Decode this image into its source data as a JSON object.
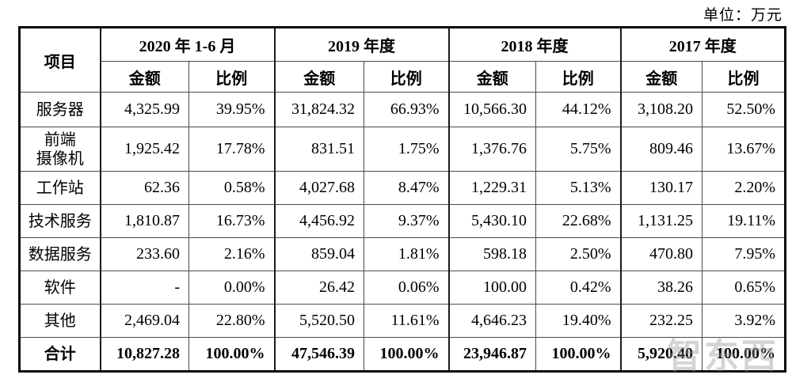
{
  "unit_label": "单位：万元",
  "watermark": "智东西",
  "table": {
    "item_header": "项目",
    "periods": [
      "2020 年 1-6 月",
      "2019 年度",
      "2018 年度",
      "2017 年度"
    ],
    "amount_header": "金额",
    "ratio_header": "比例",
    "rows": [
      {
        "label": "服务器",
        "values": [
          "4,325.99",
          "39.95%",
          "31,824.32",
          "66.93%",
          "10,566.30",
          "44.12%",
          "3,108.20",
          "52.50%"
        ]
      },
      {
        "label": "前端\n摄像机",
        "values": [
          "1,925.42",
          "17.78%",
          "831.51",
          "1.75%",
          "1,376.76",
          "5.75%",
          "809.46",
          "13.67%"
        ]
      },
      {
        "label": "工作站",
        "values": [
          "62.36",
          "0.58%",
          "4,027.68",
          "8.47%",
          "1,229.31",
          "5.13%",
          "130.17",
          "2.20%"
        ]
      },
      {
        "label": "技术服务",
        "values": [
          "1,810.87",
          "16.73%",
          "4,456.92",
          "9.37%",
          "5,430.10",
          "22.68%",
          "1,131.25",
          "19.11%"
        ]
      },
      {
        "label": "数据服务",
        "values": [
          "233.60",
          "2.16%",
          "859.04",
          "1.81%",
          "598.18",
          "2.50%",
          "470.80",
          "7.95%"
        ]
      },
      {
        "label": "软件",
        "values": [
          "-",
          "0.00%",
          "26.42",
          "0.06%",
          "100.00",
          "0.42%",
          "38.26",
          "0.65%"
        ]
      },
      {
        "label": "其他",
        "values": [
          "2,469.04",
          "22.80%",
          "5,520.50",
          "11.61%",
          "4,646.23",
          "19.40%",
          "232.25",
          "3.92%"
        ]
      },
      {
        "label": "合计",
        "is_total": true,
        "values": [
          "10,827.28",
          "100.00%",
          "47,546.39",
          "100.00%",
          "23,946.87",
          "100.00%",
          "5,920.40",
          "100.00%"
        ]
      }
    ]
  }
}
